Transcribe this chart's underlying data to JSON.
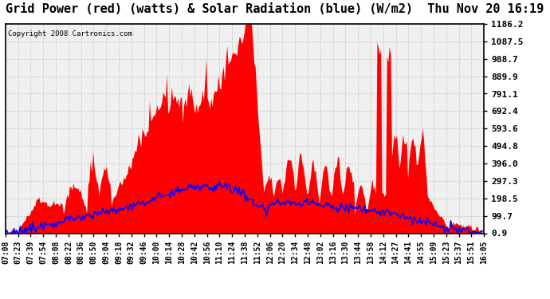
{
  "title": "Grid Power (red) (watts) & Solar Radiation (blue) (W/m2)  Thu Nov 20 16:19",
  "copyright_text": "Copyright 2008 Cartronics.com",
  "yticks": [
    0.9,
    99.7,
    198.5,
    297.3,
    396.0,
    494.8,
    593.6,
    692.4,
    791.1,
    889.9,
    988.7,
    1087.5,
    1186.2
  ],
  "xtick_labels": [
    "07:08",
    "07:23",
    "07:39",
    "07:54",
    "08:08",
    "08:22",
    "08:36",
    "08:50",
    "09:04",
    "09:18",
    "09:32",
    "09:46",
    "10:00",
    "10:14",
    "10:28",
    "10:42",
    "10:56",
    "11:10",
    "11:24",
    "11:38",
    "11:52",
    "12:06",
    "12:20",
    "12:34",
    "12:48",
    "13:02",
    "13:16",
    "13:30",
    "13:44",
    "13:58",
    "14:12",
    "14:27",
    "14:41",
    "14:55",
    "15:09",
    "15:23",
    "15:37",
    "15:51",
    "16:05"
  ],
  "ymin": 0.9,
  "ymax": 1186.2,
  "bg_color": "#ffffff",
  "plot_bg_color": "#f0f0f0",
  "grid_color": "#cccccc",
  "fill_color": "#ff0000",
  "line_color": "#0000ff",
  "title_fontsize": 11,
  "tick_fontsize": 8
}
